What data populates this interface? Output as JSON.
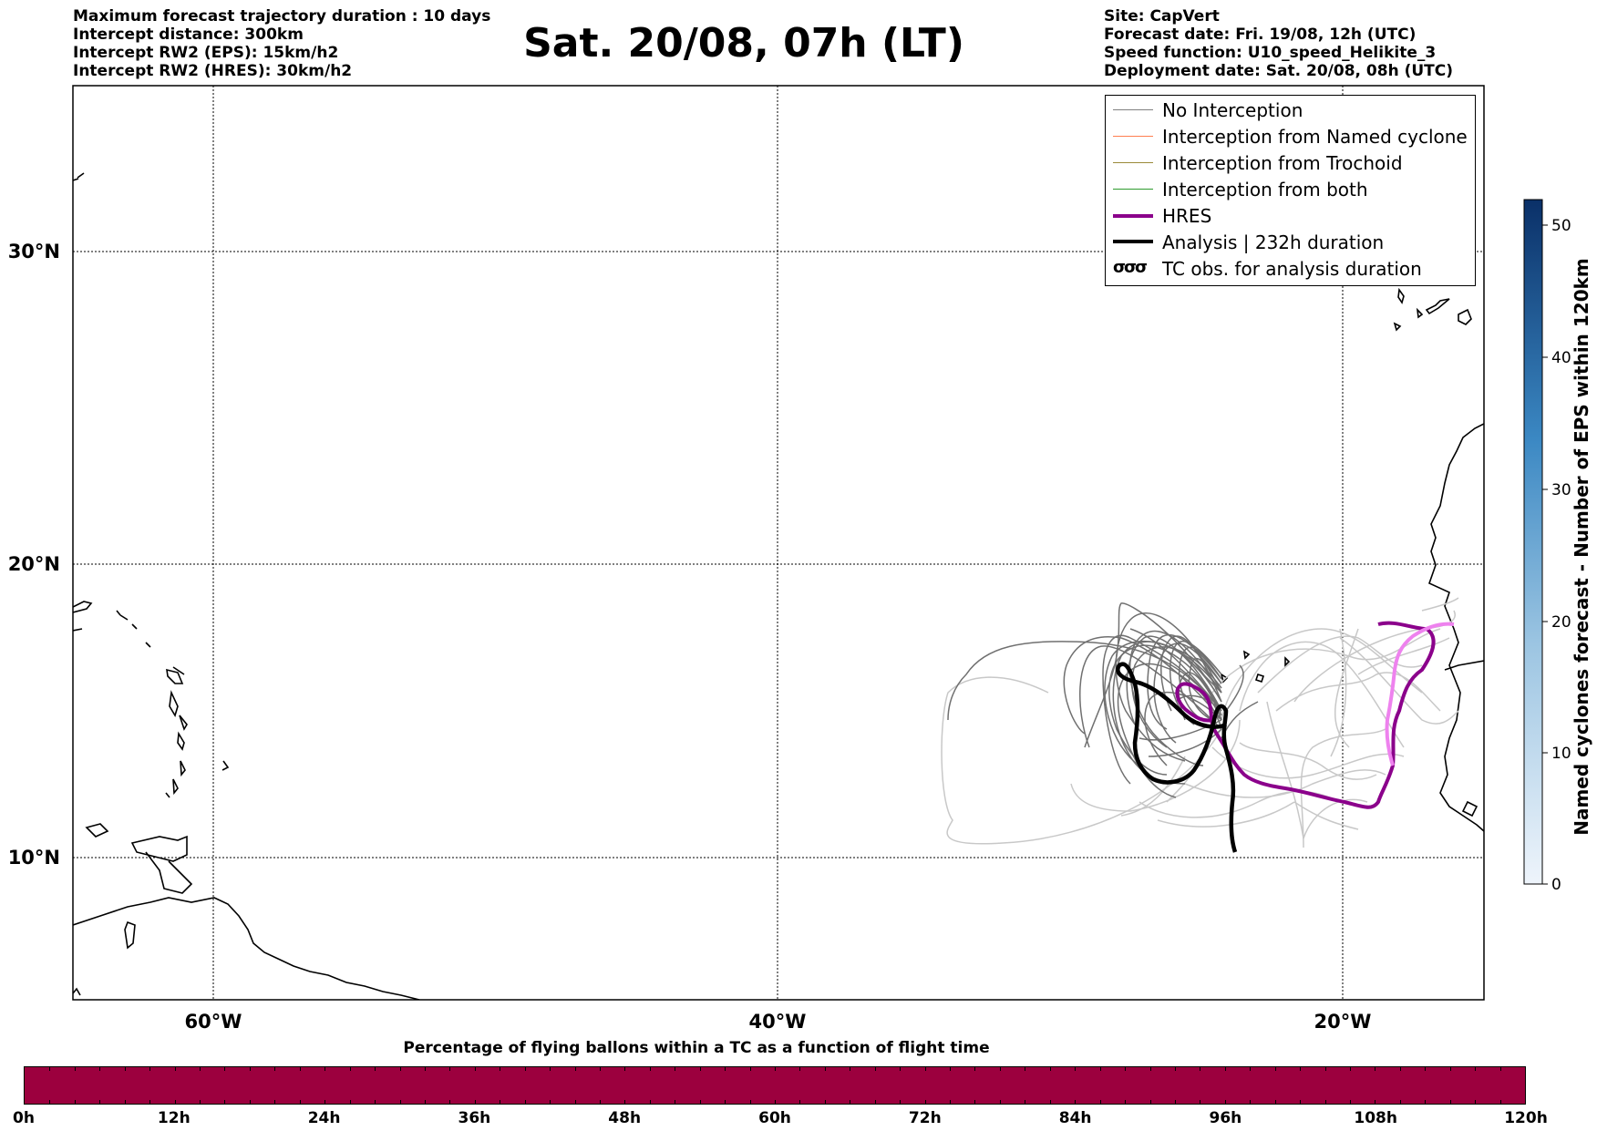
{
  "header_left": [
    "Maximum forecast trajectory duration : 10 days",
    "Intercept distance: 300km",
    "Intercept RW2 (EPS):  15km/h2",
    "Intercept RW2 (HRES): 30km/h2"
  ],
  "header_right": [
    "Site: CapVert",
    "Forecast date: Fri. 19/08, 12h (UTC)",
    "Speed function: U10_speed_Helikite_3",
    "Deployment date: Sat. 20/08, 08h (UTC)"
  ],
  "title": "Sat. 20/08, 07h (LT)",
  "map": {
    "lat_labels": [
      "30°N",
      "20°N",
      "10°N"
    ],
    "lon_labels": [
      "60°W",
      "40°W",
      "20°W"
    ]
  },
  "legend": [
    {
      "label": "No Interception",
      "color": "#808080",
      "width": 1.5
    },
    {
      "label": "Interception from Named cyclone",
      "color": "#ff7f50",
      "width": 1.5
    },
    {
      "label": "Interception from Trochoid",
      "color": "#9a8a3a",
      "width": 1.5
    },
    {
      "label": "Interception from both",
      "color": "#2e9b2e",
      "width": 1.5
    },
    {
      "label": "HRES",
      "color": "#8b008b",
      "width": 4
    },
    {
      "label": "Analysis | 232h duration",
      "color": "#000000",
      "width": 4.5
    },
    {
      "label": "TC obs. for analysis duration",
      "symbol": "σσσ"
    }
  ],
  "colorbar": {
    "label": "Named cyclones forecast - Number of EPS within 120km",
    "ticks": [
      "50",
      "40",
      "30",
      "20",
      "10",
      "0"
    ]
  },
  "bottom_bar": {
    "label": "Percentage of flying ballons within a TC as a function of flight time",
    "color": "#9c003e",
    "ticks": [
      "0h",
      "12h",
      "24h",
      "36h",
      "48h",
      "60h",
      "72h",
      "84h",
      "96h",
      "108h",
      "120h"
    ]
  }
}
